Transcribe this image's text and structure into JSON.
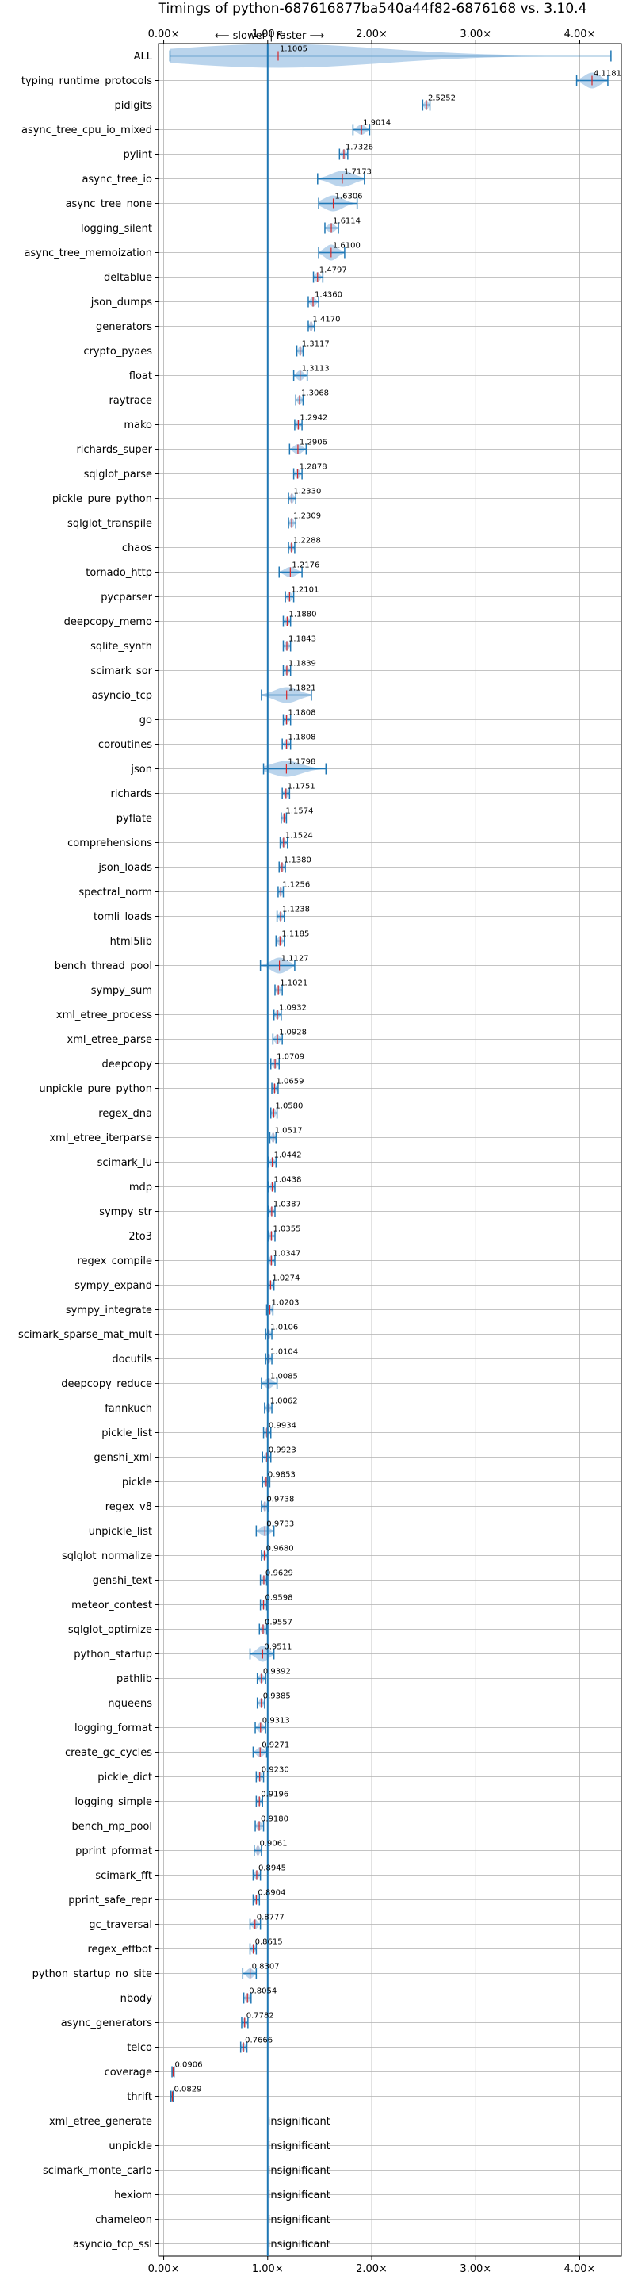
{
  "chart_data": {
    "type": "violin",
    "title": "Timings of python-687616877ba540a44f82-6876168 vs. 3.10.4",
    "direction_note": "⟵ slower | faster ⟶",
    "xlim": [
      -0.05,
      4.4
    ],
    "x_ticks": [
      0,
      1,
      2,
      3,
      4
    ],
    "x_tick_labels": [
      "0.00×",
      "1.00×",
      "2.00×",
      "3.00×",
      "4.00×"
    ],
    "grid": true,
    "reference_line": 1.0,
    "insignificant_text": "insignificant",
    "categories": [
      "ALL",
      "typing_runtime_protocols",
      "pidigits",
      "async_tree_cpu_io_mixed",
      "pylint",
      "async_tree_io",
      "async_tree_none",
      "logging_silent",
      "async_tree_memoization",
      "deltablue",
      "json_dumps",
      "generators",
      "crypto_pyaes",
      "float",
      "raytrace",
      "mako",
      "richards_super",
      "sqlglot_parse",
      "pickle_pure_python",
      "sqlglot_transpile",
      "chaos",
      "tornado_http",
      "pycparser",
      "deepcopy_memo",
      "sqlite_synth",
      "scimark_sor",
      "asyncio_tcp",
      "go",
      "coroutines",
      "json",
      "richards",
      "pyflate",
      "comprehensions",
      "json_loads",
      "spectral_norm",
      "tomli_loads",
      "html5lib",
      "bench_thread_pool",
      "sympy_sum",
      "xml_etree_process",
      "xml_etree_parse",
      "deepcopy",
      "unpickle_pure_python",
      "regex_dna",
      "xml_etree_iterparse",
      "scimark_lu",
      "mdp",
      "sympy_str",
      "2to3",
      "regex_compile",
      "sympy_expand",
      "sympy_integrate",
      "scimark_sparse_mat_mult",
      "docutils",
      "deepcopy_reduce",
      "fannkuch",
      "pickle_list",
      "genshi_xml",
      "pickle",
      "regex_v8",
      "unpickle_list",
      "sqlglot_normalize",
      "genshi_text",
      "meteor_contest",
      "sqlglot_optimize",
      "python_startup",
      "pathlib",
      "nqueens",
      "logging_format",
      "create_gc_cycles",
      "pickle_dict",
      "logging_simple",
      "bench_mp_pool",
      "pprint_pformat",
      "scimark_fft",
      "pprint_safe_repr",
      "gc_traversal",
      "regex_effbot",
      "python_startup_no_site",
      "nbody",
      "async_generators",
      "telco",
      "coverage",
      "thrift",
      "xml_etree_generate",
      "unpickle",
      "scimark_monte_carlo",
      "hexiom",
      "chameleon",
      "asyncio_tcp_ssl"
    ],
    "values": [
      1.1005,
      4.1181,
      2.5252,
      1.9014,
      1.7326,
      1.7173,
      1.6306,
      1.6114,
      1.61,
      1.4797,
      1.436,
      1.417,
      1.3117,
      1.3113,
      1.3068,
      1.2942,
      1.2906,
      1.2878,
      1.233,
      1.2309,
      1.2288,
      1.2176,
      1.2101,
      1.188,
      1.1843,
      1.1839,
      1.1821,
      1.1808,
      1.1808,
      1.1798,
      1.1751,
      1.1574,
      1.1524,
      1.138,
      1.1256,
      1.1238,
      1.1185,
      1.1127,
      1.1021,
      1.0932,
      1.0928,
      1.0709,
      1.0659,
      1.058,
      1.0517,
      1.0442,
      1.0438,
      1.0387,
      1.0355,
      1.0347,
      1.0274,
      1.0203,
      1.0106,
      1.0104,
      1.0085,
      1.0062,
      0.9934,
      0.9923,
      0.9853,
      0.9738,
      0.9733,
      0.968,
      0.9629,
      0.9598,
      0.9557,
      0.9511,
      0.9392,
      0.9385,
      0.9313,
      0.9271,
      0.923,
      0.9196,
      0.918,
      0.9061,
      0.8945,
      0.8904,
      0.8777,
      0.8615,
      0.8307,
      0.8054,
      0.7782,
      0.7666,
      0.0906,
      0.0829,
      null,
      null,
      null,
      null,
      null,
      null
    ],
    "value_labels": [
      "1.1005",
      "4.1181",
      "2.5252",
      "1.9014",
      "1.7326",
      "1.7173",
      "1.6306",
      "1.6114",
      "1.6100",
      "1.4797",
      "1.4360",
      "1.4170",
      "1.3117",
      "1.3113",
      "1.3068",
      "1.2942",
      "1.2906",
      "1.2878",
      "1.2330",
      "1.2309",
      "1.2288",
      "1.2176",
      "1.2101",
      "1.1880",
      "1.1843",
      "1.1839",
      "1.1821",
      "1.1808",
      "1.1808",
      "1.1798",
      "1.1751",
      "1.1574",
      "1.1524",
      "1.1380",
      "1.1256",
      "1.1238",
      "1.1185",
      "1.1127",
      "1.1021",
      "1.0932",
      "1.0928",
      "1.0709",
      "1.0659",
      "1.0580",
      "1.0517",
      "1.0442",
      "1.0438",
      "1.0387",
      "1.0355",
      "1.0347",
      "1.0274",
      "1.0203",
      "1.0106",
      "1.0104",
      "1.0085",
      "1.0062",
      "0.9934",
      "0.9923",
      "0.9853",
      "0.9738",
      "0.9733",
      "0.9680",
      "0.9629",
      "0.9598",
      "0.9557",
      "0.9511",
      "0.9392",
      "0.9385",
      "0.9313",
      "0.9271",
      "0.9230",
      "0.9196",
      "0.9180",
      "0.9061",
      "0.8945",
      "0.8904",
      "0.8777",
      "0.8615",
      "0.8307",
      "0.8054",
      "0.7782",
      "0.7666",
      "0.0906",
      "0.0829",
      "",
      "",
      "",
      "",
      "",
      ""
    ],
    "ranges": [
      [
        0.06,
        4.3
      ],
      [
        3.97,
        4.27
      ],
      [
        2.49,
        2.56
      ],
      [
        1.82,
        1.98
      ],
      [
        1.69,
        1.77
      ],
      [
        1.48,
        1.93
      ],
      [
        1.49,
        1.86
      ],
      [
        1.55,
        1.68
      ],
      [
        1.49,
        1.74
      ],
      [
        1.44,
        1.53
      ],
      [
        1.39,
        1.49
      ],
      [
        1.39,
        1.45
      ],
      [
        1.28,
        1.34
      ],
      [
        1.25,
        1.38
      ],
      [
        1.27,
        1.34
      ],
      [
        1.26,
        1.33
      ],
      [
        1.21,
        1.37
      ],
      [
        1.25,
        1.33
      ],
      [
        1.2,
        1.27
      ],
      [
        1.2,
        1.27
      ],
      [
        1.2,
        1.26
      ],
      [
        1.11,
        1.33
      ],
      [
        1.17,
        1.25
      ],
      [
        1.15,
        1.22
      ],
      [
        1.15,
        1.22
      ],
      [
        1.15,
        1.22
      ],
      [
        0.94,
        1.42
      ],
      [
        1.15,
        1.22
      ],
      [
        1.14,
        1.22
      ],
      [
        0.96,
        1.56
      ],
      [
        1.14,
        1.21
      ],
      [
        1.13,
        1.18
      ],
      [
        1.12,
        1.19
      ],
      [
        1.11,
        1.17
      ],
      [
        1.1,
        1.15
      ],
      [
        1.09,
        1.16
      ],
      [
        1.08,
        1.16
      ],
      [
        0.93,
        1.26
      ],
      [
        1.07,
        1.14
      ],
      [
        1.06,
        1.13
      ],
      [
        1.05,
        1.14
      ],
      [
        1.03,
        1.11
      ],
      [
        1.04,
        1.1
      ],
      [
        1.03,
        1.09
      ],
      [
        1.02,
        1.08
      ],
      [
        1.01,
        1.08
      ],
      [
        1.01,
        1.07
      ],
      [
        1.01,
        1.07
      ],
      [
        1.01,
        1.07
      ],
      [
        1.0,
        1.07
      ],
      [
        1.0,
        1.06
      ],
      [
        0.99,
        1.05
      ],
      [
        0.98,
        1.04
      ],
      [
        0.98,
        1.04
      ],
      [
        0.94,
        1.09
      ],
      [
        0.97,
        1.04
      ],
      [
        0.96,
        1.03
      ],
      [
        0.95,
        1.03
      ],
      [
        0.95,
        1.02
      ],
      [
        0.94,
        1.01
      ],
      [
        0.89,
        1.06
      ],
      [
        0.94,
        1.0
      ],
      [
        0.93,
        0.99
      ],
      [
        0.93,
        0.99
      ],
      [
        0.92,
        0.99
      ],
      [
        0.83,
        1.06
      ],
      [
        0.9,
        0.98
      ],
      [
        0.9,
        0.97
      ],
      [
        0.88,
        0.98
      ],
      [
        0.86,
        0.99
      ],
      [
        0.89,
        0.96
      ],
      [
        0.89,
        0.95
      ],
      [
        0.88,
        0.96
      ],
      [
        0.87,
        0.94
      ],
      [
        0.86,
        0.93
      ],
      [
        0.86,
        0.92
      ],
      [
        0.83,
        0.93
      ],
      [
        0.83,
        0.89
      ],
      [
        0.76,
        0.89
      ],
      [
        0.77,
        0.84
      ],
      [
        0.75,
        0.81
      ],
      [
        0.74,
        0.8
      ],
      [
        0.08,
        0.1
      ],
      [
        0.07,
        0.09
      ],
      null,
      null,
      null,
      null,
      null,
      null
    ]
  },
  "colors": {
    "body": "#aecde9",
    "line": "#1f77b4",
    "median": "#d62728",
    "grid": "#b0b0b0"
  }
}
